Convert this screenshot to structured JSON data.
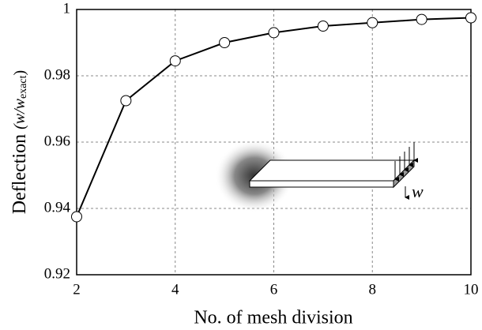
{
  "chart_data": {
    "type": "line",
    "xlabel": "No. of mesh division",
    "ylabel": [
      "Deflection ",
      "(w/w",
      "exact",
      ")"
    ],
    "x": [
      2,
      3,
      4,
      5,
      6,
      7,
      8,
      9,
      10
    ],
    "series": [
      {
        "color": "#000000",
        "values": [
          0.9375,
          0.9725,
          0.9845,
          0.99,
          0.993,
          0.995,
          0.996,
          0.997,
          0.9975
        ]
      }
    ],
    "xlim": [
      2,
      10
    ],
    "xticks": [
      2,
      4,
      6,
      8,
      10
    ],
    "ylim": [
      0.92,
      1
    ],
    "yticks": [
      0.92,
      0.94,
      0.96,
      0.98,
      1
    ],
    "grid": true,
    "inset_label": "w"
  }
}
